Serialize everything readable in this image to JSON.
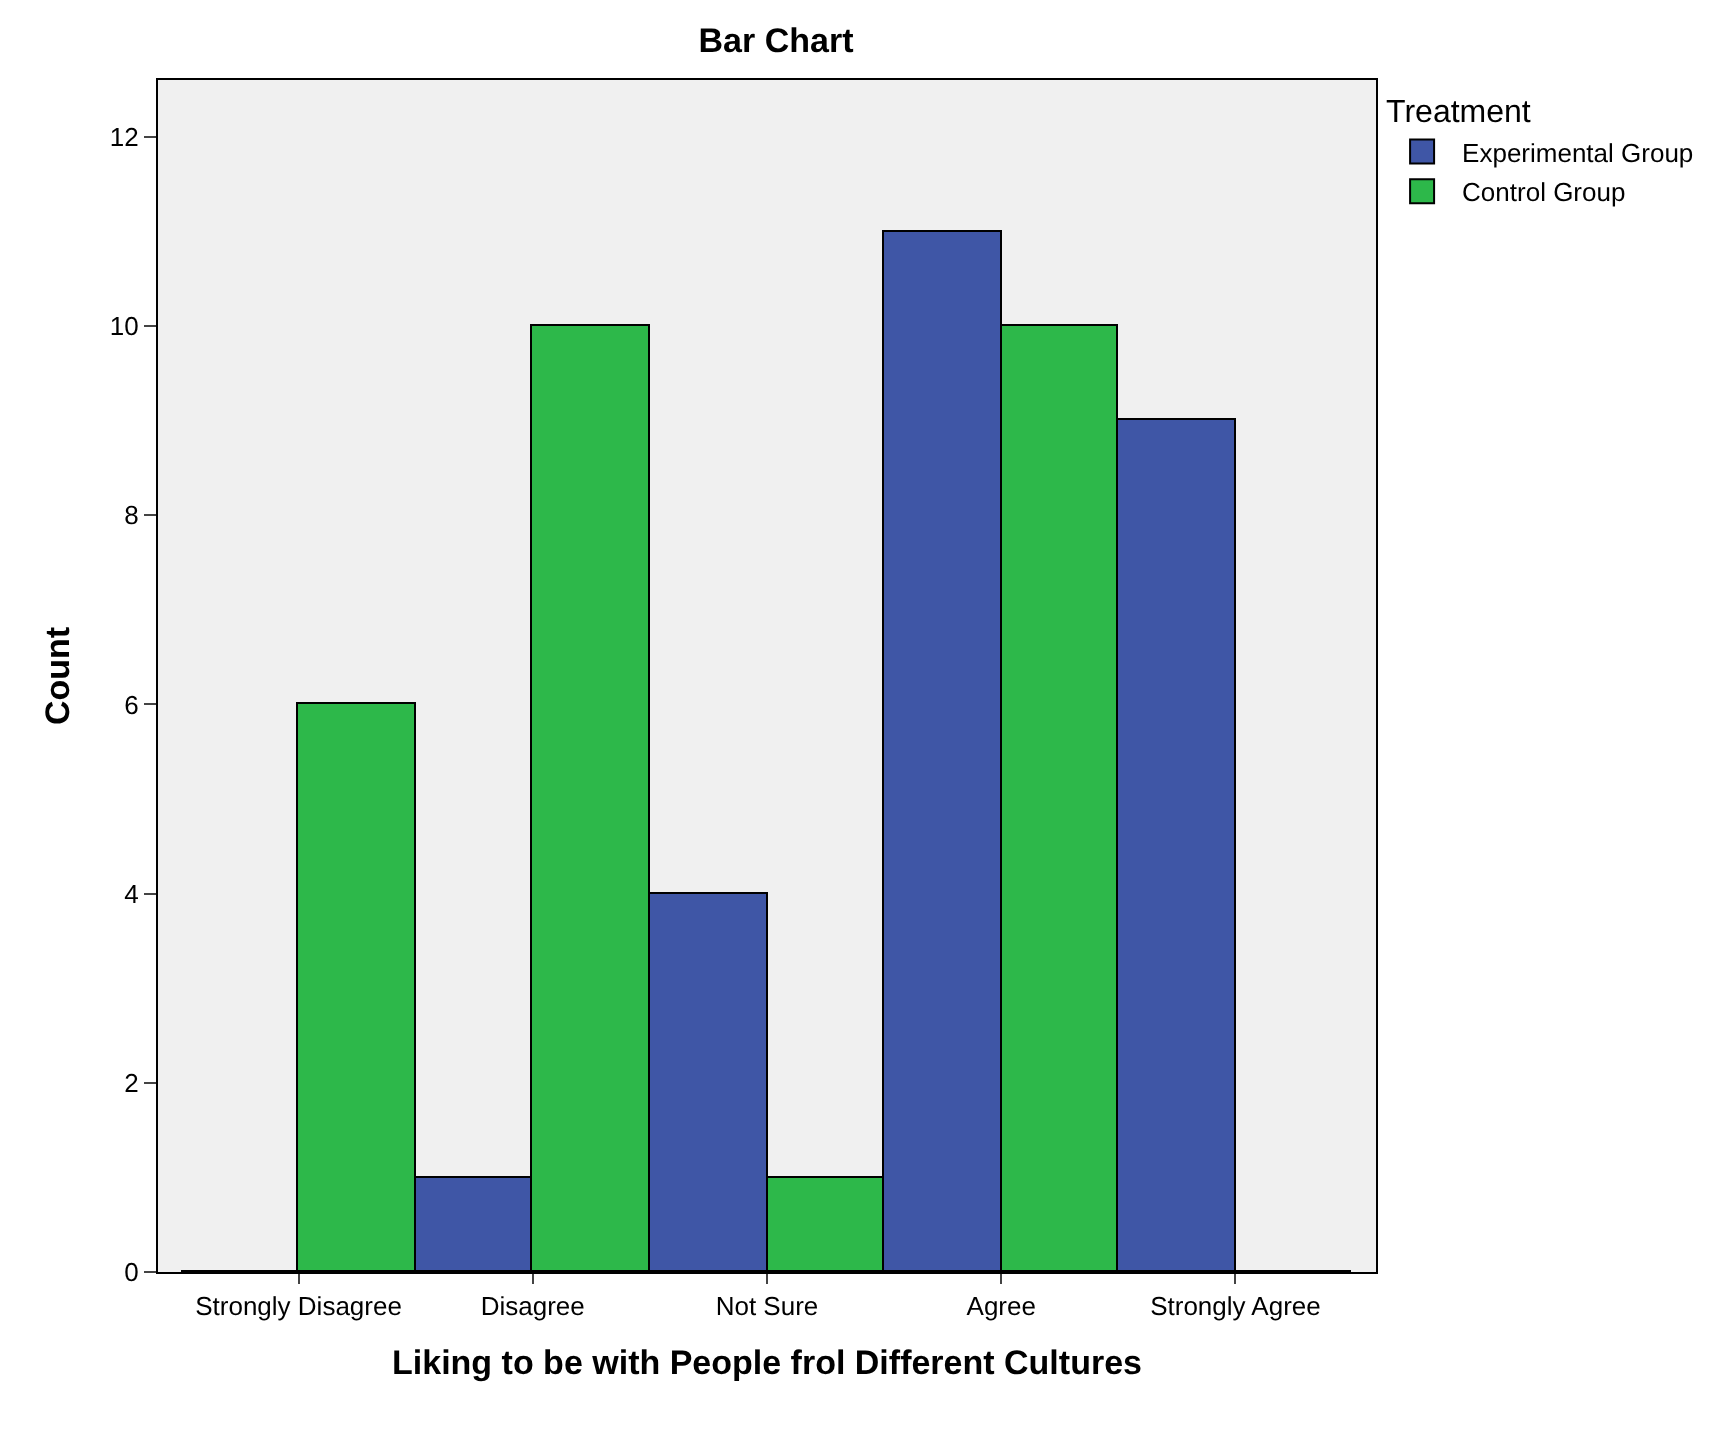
{
  "chart_data": {
    "type": "bar",
    "title": "Bar Chart",
    "xlabel": "Liking to be with People frol Different Cultures",
    "ylabel": "Count",
    "legend_title": "Treatment",
    "categories": [
      "Strongly Disagree",
      "Disagree",
      "Not Sure",
      "Agree",
      "Strongly Agree"
    ],
    "series": [
      {
        "name": "Experimental Group",
        "color": "#3f56a6",
        "values": [
          0,
          1,
          4,
          11,
          9
        ]
      },
      {
        "name": "Control Group",
        "color": "#2db84a",
        "values": [
          6,
          10,
          1,
          10,
          0
        ]
      }
    ],
    "ylim": [
      0,
      12.6
    ],
    "yticks": [
      0,
      2,
      4,
      6,
      8,
      10,
      12
    ],
    "grid": false,
    "legend": "top right"
  }
}
